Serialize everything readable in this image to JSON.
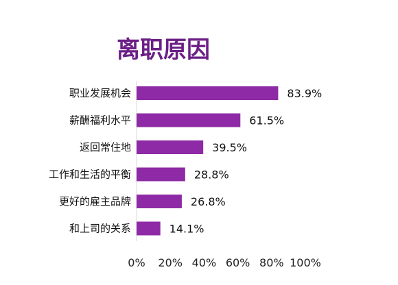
{
  "chart_data": {
    "type": "bar",
    "orientation": "horizontal",
    "title": "离职原因",
    "categories": [
      "职业发展机会",
      "薪酬福利水平",
      "返回常住地",
      "工作和生活的平衡",
      "更好的雇主品牌",
      "和上司的关系"
    ],
    "values": [
      83.9,
      61.5,
      39.5,
      28.8,
      26.8,
      14.1
    ],
    "data_labels": [
      "83.9%",
      "61.5%",
      "39.5%",
      "28.8%",
      "26.8%",
      "14.1%"
    ],
    "xlim": [
      0,
      100
    ],
    "xticks": [
      0,
      20,
      40,
      60,
      80,
      100
    ],
    "xtick_labels": [
      "0%",
      "20%",
      "40%",
      "60%",
      "80%",
      "100%"
    ],
    "grid": false,
    "legend": "none",
    "bar_color": "#8e2aa6",
    "title_color": "#6b1f86"
  }
}
